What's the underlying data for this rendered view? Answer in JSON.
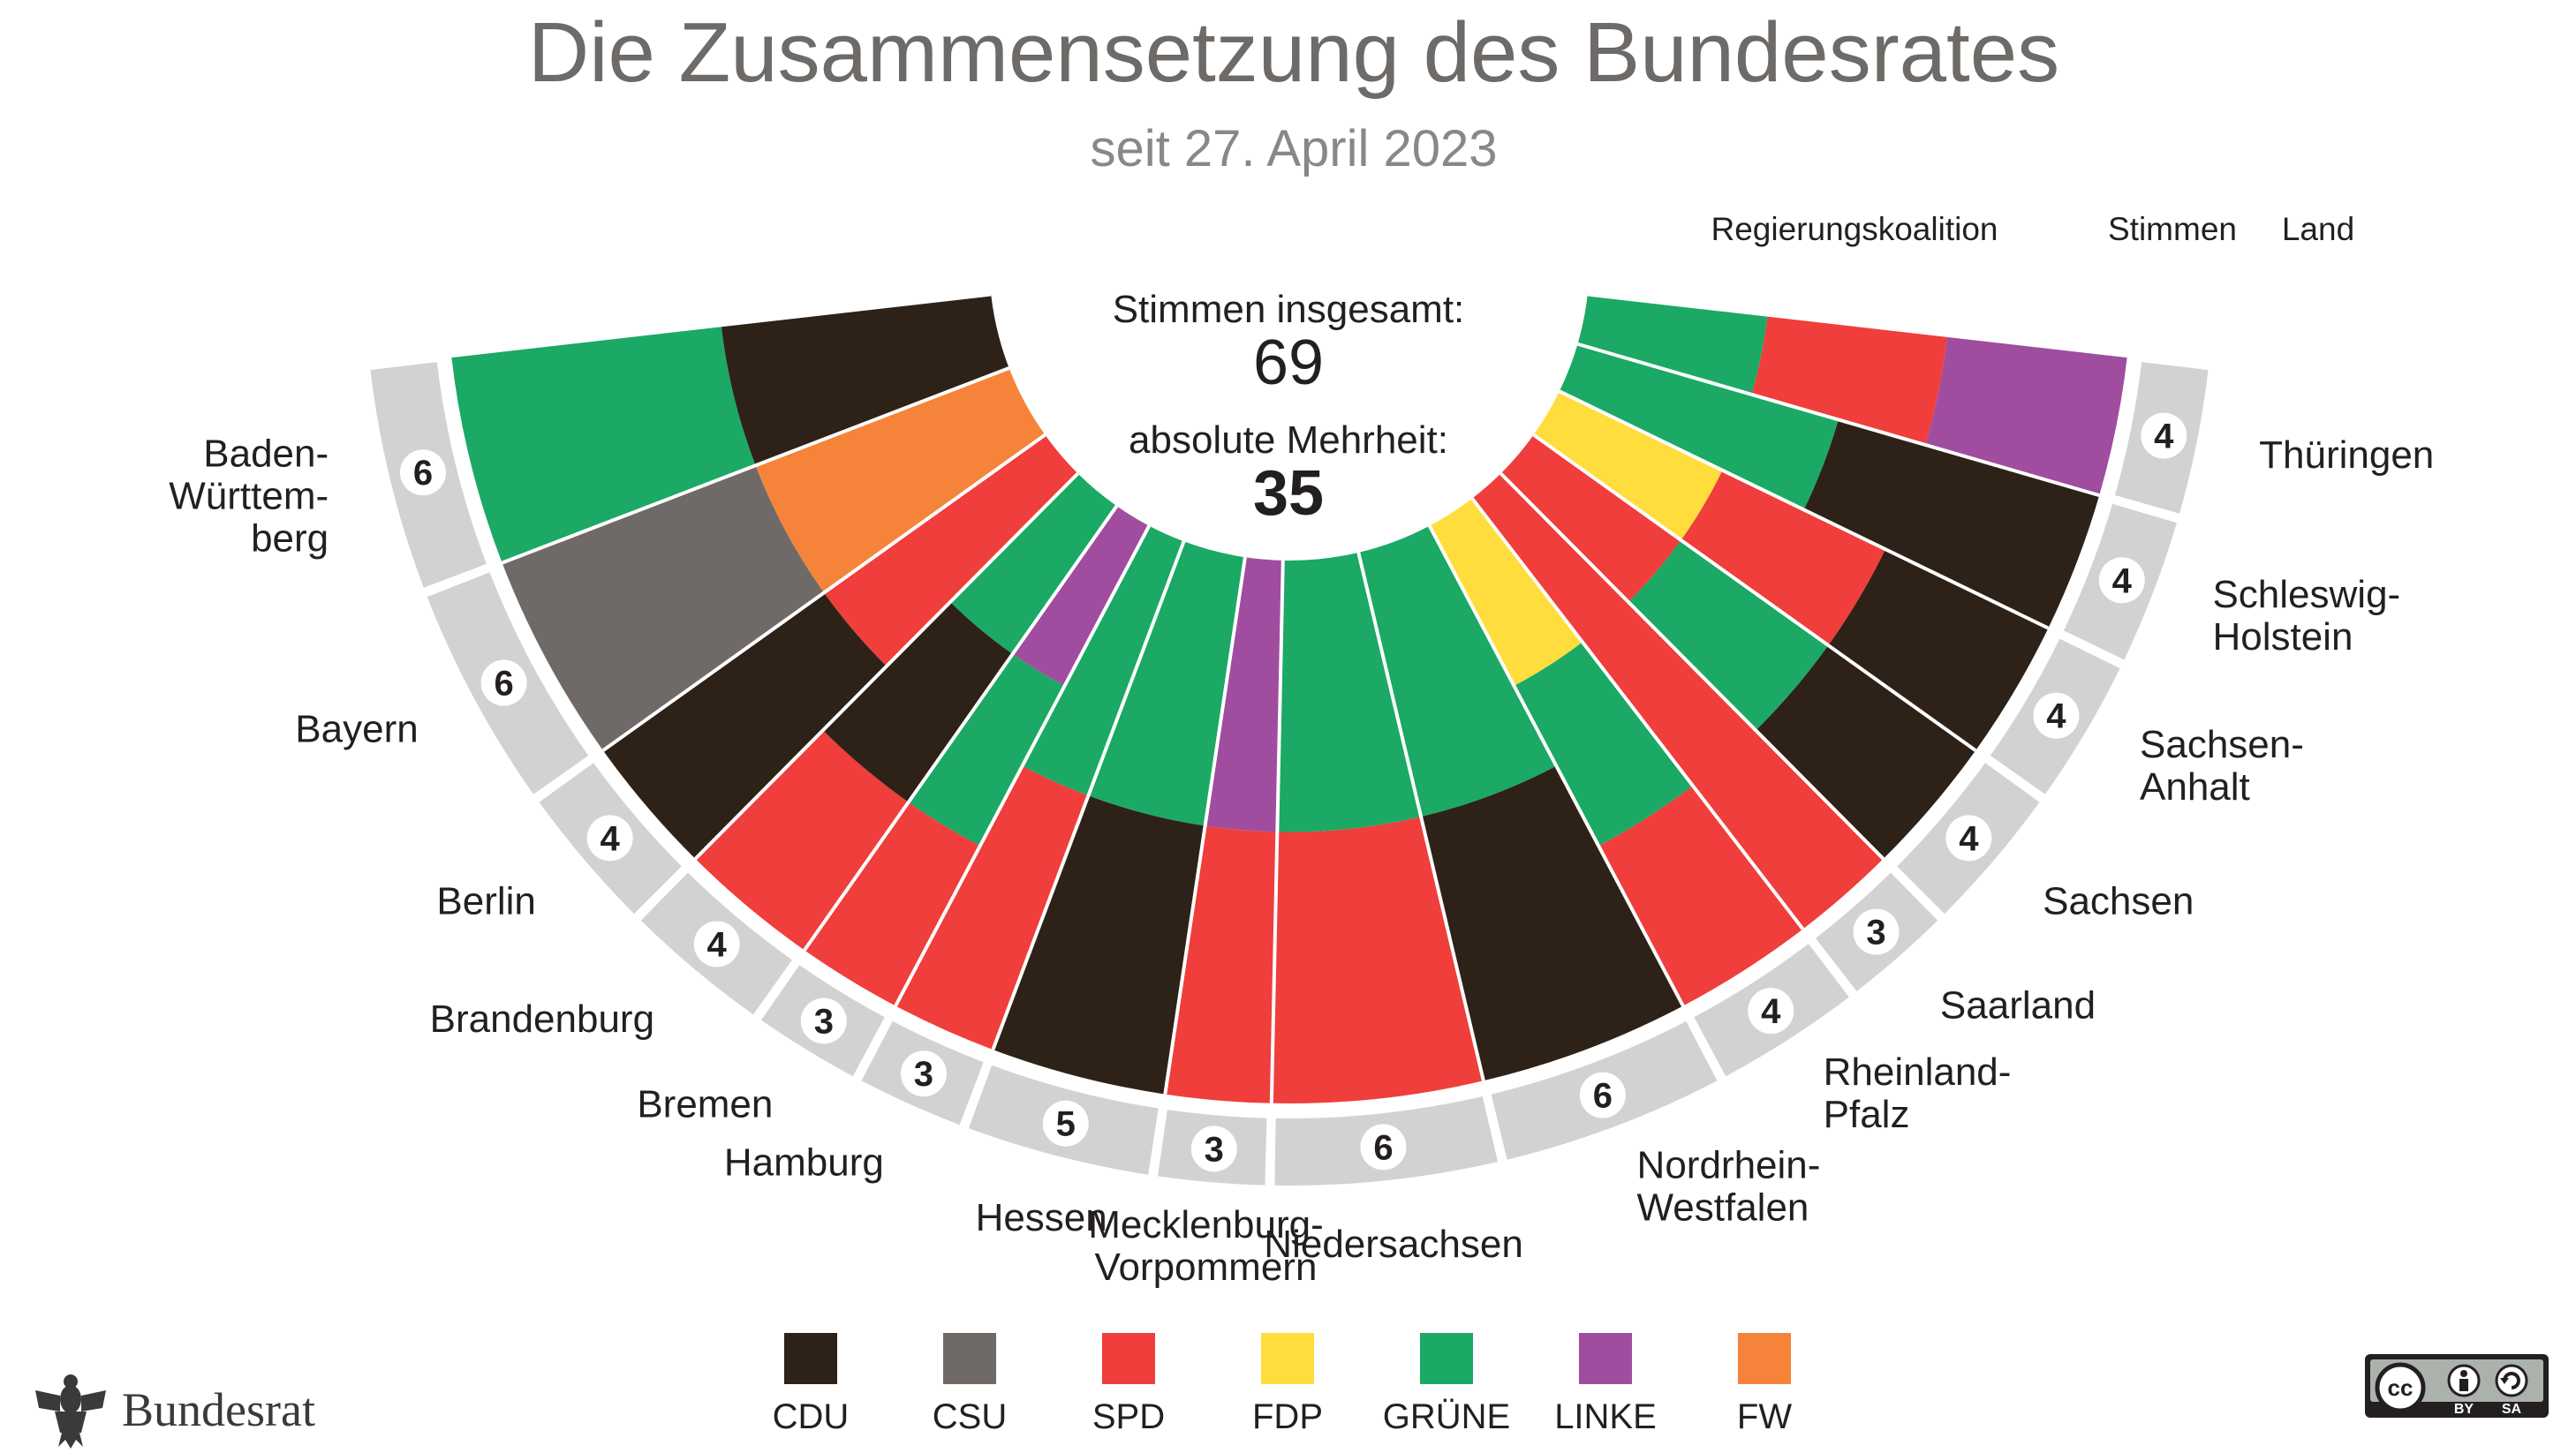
{
  "title": "Die Zusammensetzung des Bundesrates",
  "subtitle": "seit 27. April 2023",
  "header": {
    "coalition": "Regierungskoalition",
    "votes": "Stimmen",
    "land": "Land"
  },
  "center": {
    "total_label": "Stimmen insgesamt:",
    "total_value": "69",
    "majority_label": "absolute Mehrheit:",
    "majority_value": "35"
  },
  "parties": [
    {
      "key": "CDU",
      "label": "CDU",
      "color": "#2e2218"
    },
    {
      "key": "CSU",
      "label": "CSU",
      "color": "#6f6a67"
    },
    {
      "key": "SPD",
      "label": "SPD",
      "color": "#ef3e3b"
    },
    {
      "key": "FDP",
      "label": "FDP",
      "color": "#ffdd3c"
    },
    {
      "key": "GRUENE",
      "label": "GRÜNE",
      "color": "#1ba965"
    },
    {
      "key": "LINKE",
      "label": "LINKE",
      "color": "#a04d9f"
    },
    {
      "key": "FW",
      "label": "FW",
      "color": "#f5843a"
    }
  ],
  "chart_data": {
    "type": "pie",
    "layout": "semicircle",
    "total_votes": 69,
    "absolute_majority": 35,
    "series": [
      {
        "land": "Baden-Württemberg",
        "label_lines": [
          "Baden-",
          "Württem-",
          "berg"
        ],
        "votes": 6,
        "coalition": [
          "GRUENE",
          "CDU"
        ]
      },
      {
        "land": "Bayern",
        "label_lines": [
          "Bayern"
        ],
        "votes": 6,
        "coalition": [
          "CSU",
          "FW"
        ]
      },
      {
        "land": "Berlin",
        "label_lines": [
          "Berlin"
        ],
        "votes": 4,
        "coalition": [
          "CDU",
          "SPD"
        ]
      },
      {
        "land": "Brandenburg",
        "label_lines": [
          "Brandenburg"
        ],
        "votes": 4,
        "coalition": [
          "SPD",
          "CDU",
          "GRUENE"
        ]
      },
      {
        "land": "Bremen",
        "label_lines": [
          "Bremen"
        ],
        "votes": 3,
        "coalition": [
          "SPD",
          "GRUENE",
          "LINKE"
        ]
      },
      {
        "land": "Hamburg",
        "label_lines": [
          "Hamburg"
        ],
        "votes": 3,
        "coalition": [
          "SPD",
          "GRUENE"
        ]
      },
      {
        "land": "Hessen",
        "label_lines": [
          "Hessen"
        ],
        "votes": 5,
        "coalition": [
          "CDU",
          "GRUENE"
        ]
      },
      {
        "land": "Mecklenburg-Vorpommern",
        "label_lines": [
          "Mecklenburg-",
          "Vorpommern"
        ],
        "votes": 3,
        "coalition": [
          "SPD",
          "LINKE"
        ]
      },
      {
        "land": "Niedersachsen",
        "label_lines": [
          "Niedersachsen"
        ],
        "votes": 6,
        "coalition": [
          "SPD",
          "GRUENE"
        ]
      },
      {
        "land": "Nordrhein-Westfalen",
        "label_lines": [
          "Nordrhein-",
          "Westfalen"
        ],
        "votes": 6,
        "coalition": [
          "CDU",
          "GRUENE"
        ]
      },
      {
        "land": "Rheinland-Pfalz",
        "label_lines": [
          "Rheinland-",
          "Pfalz"
        ],
        "votes": 4,
        "coalition": [
          "SPD",
          "GRUENE",
          "FDP"
        ]
      },
      {
        "land": "Saarland",
        "label_lines": [
          "Saarland"
        ],
        "votes": 3,
        "coalition": [
          "SPD"
        ]
      },
      {
        "land": "Sachsen",
        "label_lines": [
          "Sachsen"
        ],
        "votes": 4,
        "coalition": [
          "CDU",
          "GRUENE",
          "SPD"
        ]
      },
      {
        "land": "Sachsen-Anhalt",
        "label_lines": [
          "Sachsen-",
          "Anhalt"
        ],
        "votes": 4,
        "coalition": [
          "CDU",
          "SPD",
          "FDP"
        ]
      },
      {
        "land": "Schleswig-Holstein",
        "label_lines": [
          "Schleswig-",
          "Holstein"
        ],
        "votes": 4,
        "coalition": [
          "CDU",
          "GRUENE"
        ]
      },
      {
        "land": "Thüringen",
        "label_lines": [
          "Thüringen"
        ],
        "votes": 4,
        "coalition": [
          "LINKE",
          "SPD",
          "GRUENE"
        ]
      }
    ]
  },
  "brand": "Bundesrat",
  "license": {
    "by": "BY",
    "sa": "SA"
  }
}
